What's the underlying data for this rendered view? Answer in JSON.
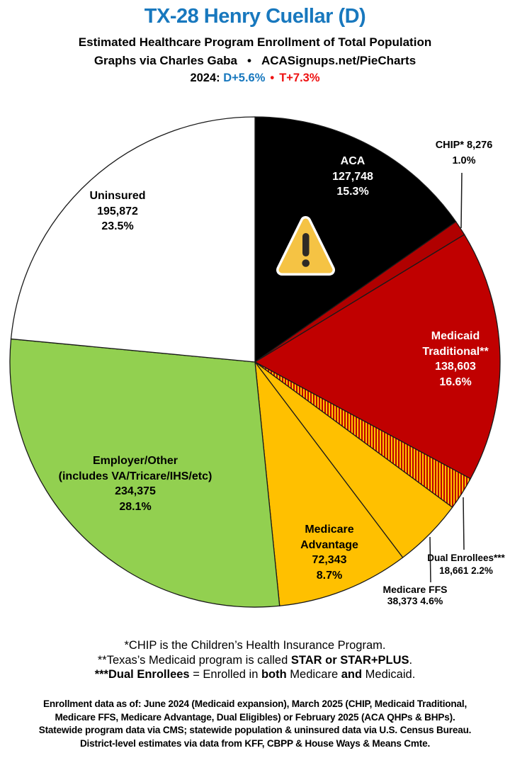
{
  "header": {
    "title": "TX-28 Henry Cuellar (D)",
    "subtitle": "Estimated Healthcare Program Enrollment of Total Population",
    "credit_left": "Graphs via Charles Gaba",
    "credit_bullet": "•",
    "credit_right": "ACASignups.net/PieCharts",
    "partisan_prefix": "2024:",
    "partisan_dem": "D+5.6%",
    "partisan_bullet": "•",
    "partisan_rep": "T+7.3%"
  },
  "colors": {
    "title_blue": "#1878BE",
    "dem_blue": "#1878BE",
    "rep_red": "#EE1111",
    "pie_black": "#000000",
    "pie_dark_red": "#B00000",
    "pie_red": "#C00000",
    "pie_yellow": "#FFC000",
    "pie_green": "#92D050",
    "pie_white": "#FFFFFF",
    "warning_gold": "#F5C344"
  },
  "chart_data": {
    "type": "pie",
    "title": "Estimated Healthcare Program Enrollment of Total Population",
    "units": "people enrolled (count and % of total population)",
    "start_angle_deg": 0,
    "direction": "clockwise",
    "slices": [
      {
        "name": "ACA",
        "value": 127748,
        "enrollment": "127,748",
        "pct": 15.3,
        "pct_label": "15.3%",
        "color": "#000000",
        "label_lines": [
          "ACA",
          "127,748",
          "15.3%"
        ]
      },
      {
        "name": "CHIP",
        "value": 8276,
        "enrollment": "8,276",
        "pct": 1.0,
        "pct_label": "1.0%",
        "color": "#B00000",
        "label_lines": [
          "CHIP* 8,276",
          "1.0%"
        ]
      },
      {
        "name": "Medicaid Traditional",
        "value": 138603,
        "enrollment": "138,603",
        "pct": 16.6,
        "pct_label": "16.6%",
        "color": "#C00000",
        "label_lines": [
          "Medicaid",
          "Traditional**",
          "138,603",
          "16.6%"
        ]
      },
      {
        "name": "Dual Enrollees",
        "value": 18661,
        "enrollment": "18,661",
        "pct": 2.2,
        "pct_label": "2.2%",
        "color": "hatch-red-yellow",
        "label_lines": [
          "Dual Enrollees***",
          "18,661 2.2%"
        ]
      },
      {
        "name": "Medicare FFS",
        "value": 38373,
        "enrollment": "38,373",
        "pct": 4.6,
        "pct_label": "4.6%",
        "color": "#FFC000",
        "label_lines": [
          "Medicare FFS",
          "38,373 4.6%"
        ]
      },
      {
        "name": "Medicare Advantage",
        "value": 72343,
        "enrollment": "72,343",
        "pct": 8.7,
        "pct_label": "8.7%",
        "color": "#FFC000",
        "label_lines": [
          "Medicare",
          "Advantage",
          "72,343",
          "8.7%"
        ]
      },
      {
        "name": "Employer/Other",
        "value": 234375,
        "enrollment": "234,375",
        "pct": 28.1,
        "pct_label": "28.1%",
        "color": "#92D050",
        "label_lines": [
          "Employer/Other",
          "(includes VA/Tricare/IHS/etc)",
          "234,375",
          "28.1%"
        ]
      },
      {
        "name": "Uninsured",
        "value": 195872,
        "enrollment": "195,872",
        "pct": 23.5,
        "pct_label": "23.5%",
        "color": "#FFFFFF",
        "label_lines": [
          "Uninsured",
          "195,872",
          "23.5%"
        ]
      }
    ],
    "legend_position": "none",
    "annotations": [
      "warning-emoji inside ACA slice"
    ]
  },
  "footnotes": {
    "line1": "*CHIP is the Children’s Health Insurance Program.",
    "line2_pre": "**Texas’s Medicaid program is called ",
    "line2_bold": "STAR or STAR+PLUS",
    "line2_post": ".",
    "line3_bold1": "***Dual Enrollees",
    "line3_mid1": " = Enrolled in ",
    "line3_bold2": "both",
    "line3_mid2": " Medicare ",
    "line3_bold3": "and",
    "line3_post": " Medicaid."
  },
  "source_block": {
    "line1": "Enrollment data as of: June 2024 (Medicaid expansion), March 2025 (CHIP, Medicaid Traditional,",
    "line2": "Medicare FFS, Medicare Advantage, Dual Eligibles) or February 2025 (ACA QHPs & BHPs).",
    "line3": "Statewide program data via CMS; statewide population & uninsured data via U.S. Census Bureau.",
    "line4": "District-level estimates via data from KFF, CBPP & House Ways & Means Cmte."
  }
}
